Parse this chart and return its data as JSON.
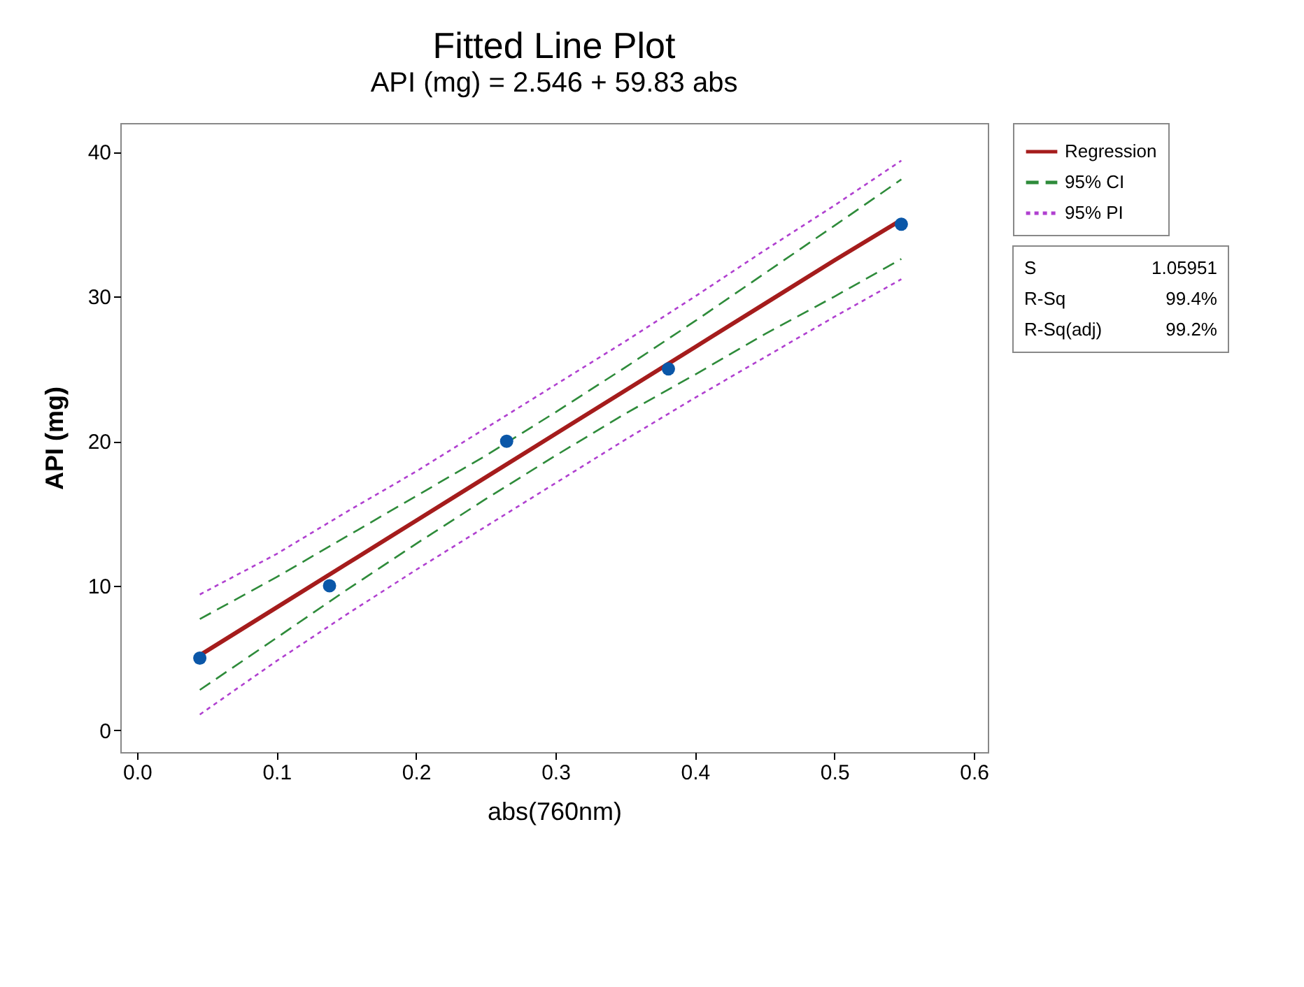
{
  "chart_data": {
    "type": "line",
    "title": "Fitted Line Plot",
    "subtitle": "API (mg) = 2.546 + 59.83 abs",
    "xlabel": "abs(760nm)",
    "ylabel": "API (mg)",
    "x": [
      0.045,
      0.1,
      0.15,
      0.2,
      0.25,
      0.3,
      0.35,
      0.4,
      0.45,
      0.5,
      0.548
    ],
    "series": [
      {
        "name": "Regression",
        "color": "#a51c1c",
        "line_style": "solid",
        "values": [
          5.2,
          8.5,
          11.5,
          14.5,
          17.5,
          20.5,
          23.5,
          26.5,
          29.5,
          32.5,
          35.3
        ]
      },
      {
        "name": "95% CI",
        "color": "#2e8b3a",
        "line_style": "dashed",
        "values": [
          7.7,
          10.6,
          13.4,
          16.2,
          19.0,
          22.0,
          25.1,
          28.3,
          31.6,
          34.9,
          38.1
        ]
      },
      {
        "color": "#2e8b3a",
        "line_style": "dashed",
        "values": [
          2.8,
          6.4,
          9.7,
          12.9,
          16.0,
          19.0,
          21.9,
          24.6,
          27.4,
          30.0,
          32.6
        ]
      },
      {
        "name": "95% PI",
        "color": "#b040d0",
        "line_style": "dotted",
        "values": [
          9.4,
          12.2,
          15.1,
          17.9,
          20.9,
          23.9,
          26.9,
          30.0,
          33.2,
          36.3,
          39.4
        ]
      },
      {
        "color": "#b040d0",
        "line_style": "dotted",
        "values": [
          1.1,
          4.8,
          8.0,
          11.1,
          14.1,
          17.1,
          20.1,
          23.0,
          25.8,
          28.6,
          31.2
        ]
      },
      {
        "type": "scatter",
        "marker": "circle",
        "color": "#0b57a8",
        "x": [
          0.045,
          0.138,
          0.265,
          0.381,
          0.548
        ],
        "values": [
          5,
          10,
          20,
          25,
          35
        ]
      }
    ],
    "legend": "top right",
    "grid": false,
    "xlim": [
      -0.012,
      0.61
    ],
    "xticks": [
      {
        "value": 0,
        "label": "0.0"
      },
      0.1,
      0.2,
      0.3,
      0.4,
      0.5,
      0.6
    ],
    "ylim": [
      -1.5,
      42
    ],
    "yticks": [
      0,
      10,
      20,
      30,
      40
    ],
    "annotations": [
      "S",
      "1.05951",
      "R-Sq",
      "99.4%",
      "R-Sq(adj)",
      "99.2%"
    ]
  }
}
